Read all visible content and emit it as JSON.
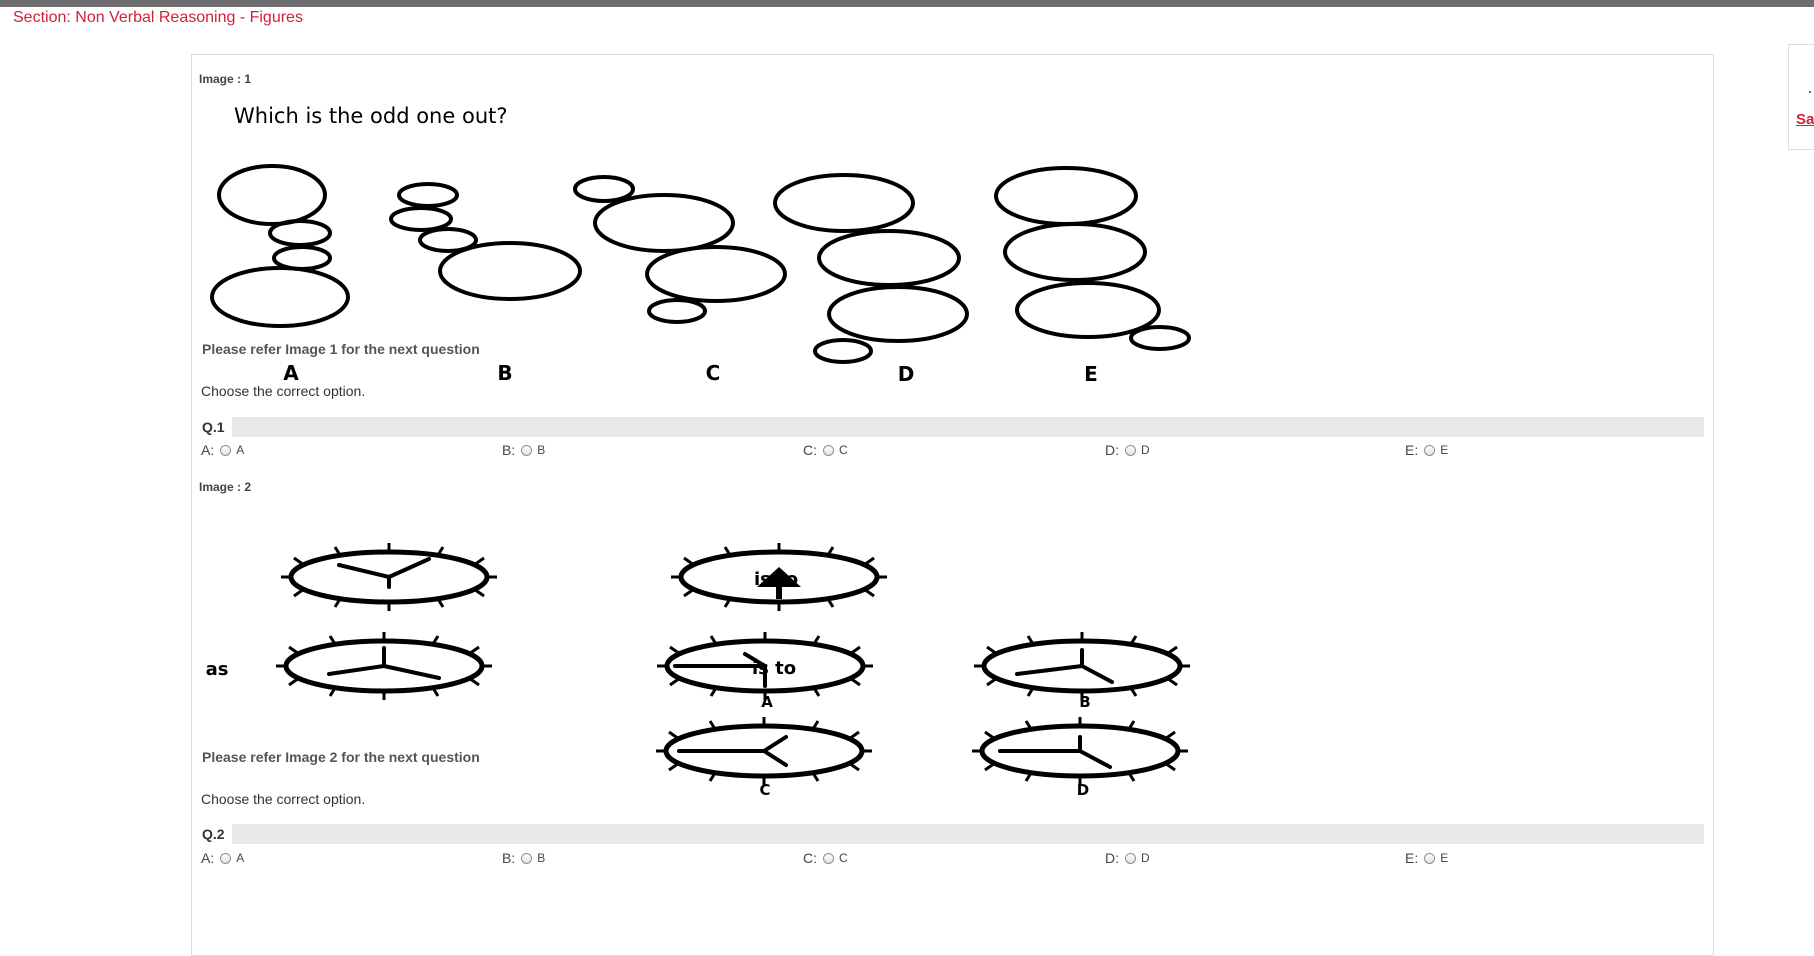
{
  "section": {
    "title": "Section: Non Verbal Reasoning - Figures"
  },
  "side_panel": {
    "link_label": "Sa"
  },
  "questions": [
    {
      "image_label": "Image : 1",
      "figure": {
        "heading": "Which is the odd one out?",
        "letters": [
          "A",
          "B",
          "C",
          "D",
          "E"
        ]
      },
      "refer_text": "Please refer Image 1 for the next question",
      "instruction": "Choose the correct option.",
      "number": "Q.1",
      "options": [
        {
          "letter": "A:",
          "value": "A"
        },
        {
          "letter": "B:",
          "value": "B"
        },
        {
          "letter": "C:",
          "value": "C"
        },
        {
          "letter": "D:",
          "value": "D"
        },
        {
          "letter": "E:",
          "value": "E"
        }
      ]
    },
    {
      "image_label": "Image : 2",
      "figure": {
        "is_to_1": "is to",
        "as": "as",
        "is_to_2": "is to",
        "letters": [
          "A",
          "B",
          "C",
          "D"
        ]
      },
      "refer_text": "Please refer Image 2 for the next question",
      "instruction": "Choose the correct option.",
      "number": "Q.2",
      "options": [
        {
          "letter": "A:",
          "value": "A"
        },
        {
          "letter": "B:",
          "value": "B"
        },
        {
          "letter": "C:",
          "value": "C"
        },
        {
          "letter": "D:",
          "value": "D"
        },
        {
          "letter": "E:",
          "value": "E"
        }
      ]
    }
  ]
}
